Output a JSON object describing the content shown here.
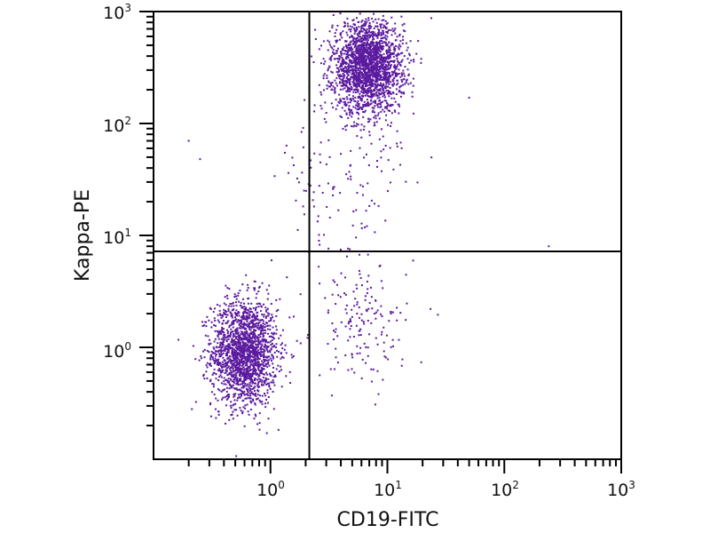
{
  "chart_data": {
    "type": "scatter",
    "title": "",
    "xlabel": "CD19-FITC",
    "ylabel": "Kappa-PE",
    "x_scale": "log",
    "y_scale": "log",
    "xlim": [
      0.1,
      1000
    ],
    "ylim": [
      0.1,
      1000
    ],
    "x_ticks": [
      {
        "base": "10",
        "exp": "0",
        "value": 1
      },
      {
        "base": "10",
        "exp": "1",
        "value": 10
      },
      {
        "base": "10",
        "exp": "2",
        "value": 100
      },
      {
        "base": "10",
        "exp": "3",
        "value": 1000
      }
    ],
    "y_ticks": [
      {
        "base": "10",
        "exp": "0",
        "value": 1
      },
      {
        "base": "10",
        "exp": "1",
        "value": 10
      },
      {
        "base": "10",
        "exp": "2",
        "value": 100
      },
      {
        "base": "10",
        "exp": "3",
        "value": 1000
      }
    ],
    "grid": false,
    "point_color": "#5b1a9e",
    "quadrant_gates": {
      "x": 2.15,
      "y": 7.2
    },
    "populations": [
      {
        "center": [
          0.6,
          0.9
        ],
        "log_sd": [
          0.14,
          0.24
        ],
        "count": 1800
      },
      {
        "center": [
          6.8,
          320
        ],
        "log_sd": [
          0.15,
          0.2
        ],
        "count": 2100
      },
      {
        "center": [
          6.0,
          1.6
        ],
        "log_sd": [
          0.2,
          0.25
        ],
        "count": 160
      },
      {
        "center": [
          4.5,
          30
        ],
        "log_sd": [
          0.3,
          0.45
        ],
        "count": 140
      }
    ],
    "outliers": [
      [
        50,
        170
      ],
      [
        240,
        8
      ],
      [
        0.25,
        48
      ],
      [
        0.2,
        70
      ]
    ]
  }
}
